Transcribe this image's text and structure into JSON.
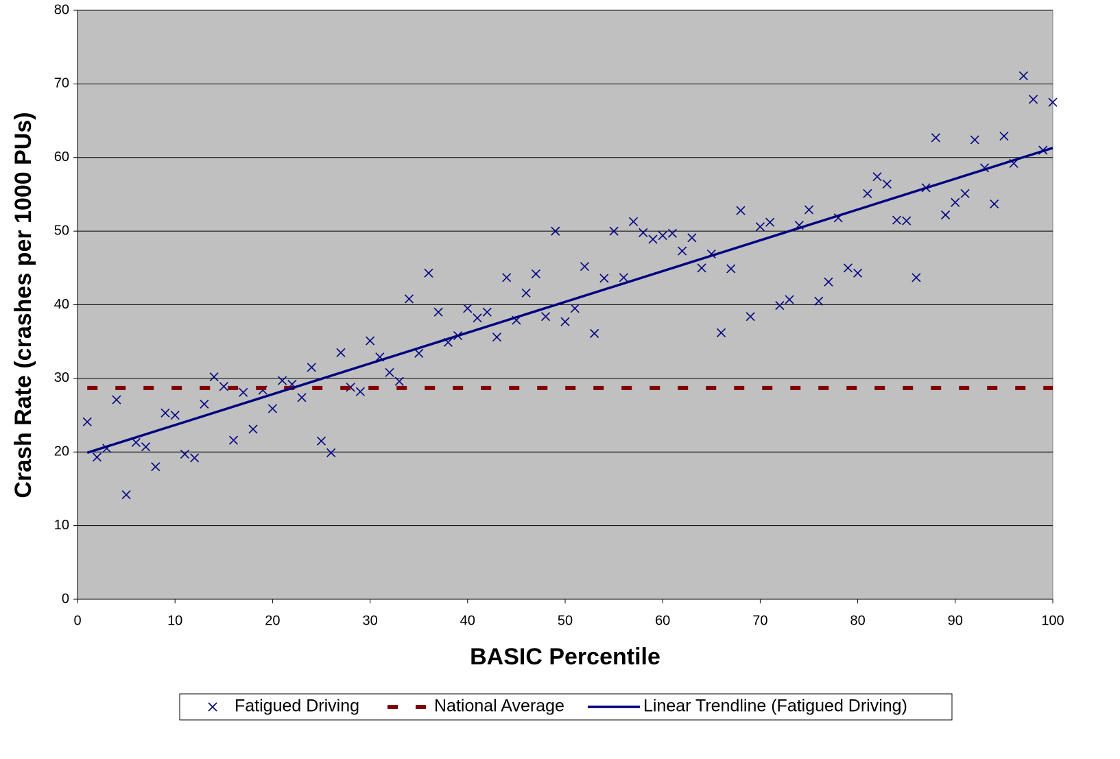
{
  "chart_data": {
    "type": "scatter",
    "xlabel": "BASIC Percentile",
    "ylabel": "Crash Rate (crashes per 1000 PUs)",
    "xlim": [
      0,
      100
    ],
    "xticks": [
      0,
      10,
      20,
      30,
      40,
      50,
      60,
      70,
      80,
      90,
      100
    ],
    "ylim": [
      0,
      80
    ],
    "yticks": [
      0,
      10,
      20,
      30,
      40,
      50,
      60,
      70,
      80
    ],
    "grid": true,
    "legend": "bottom",
    "series": [
      {
        "name": "Fatigued Driving",
        "type": "scatter",
        "color": "#000080",
        "x": [
          1,
          2,
          3,
          4,
          5,
          6,
          7,
          8,
          9,
          10,
          11,
          12,
          13,
          14,
          15,
          16,
          17,
          18,
          19,
          20,
          21,
          22,
          23,
          24,
          25,
          26,
          27,
          28,
          29,
          30,
          31,
          32,
          33,
          34,
          35,
          36,
          37,
          38,
          39,
          40,
          41,
          42,
          43,
          44,
          45,
          46,
          47,
          48,
          49,
          50,
          51,
          52,
          53,
          54,
          55,
          56,
          57,
          58,
          59,
          60,
          61,
          62,
          63,
          64,
          65,
          66,
          67,
          68,
          69,
          70,
          71,
          72,
          73,
          74,
          75,
          76,
          77,
          78,
          79,
          80,
          81,
          82,
          83,
          84,
          85,
          86,
          87,
          88,
          89,
          90,
          91,
          92,
          93,
          94,
          95,
          96,
          97,
          98,
          99,
          100
        ],
        "values": [
          24.1,
          19.3,
          20.5,
          27.1,
          14.2,
          21.3,
          20.7,
          18.0,
          25.3,
          25.0,
          19.7,
          19.2,
          26.5,
          30.2,
          28.9,
          21.6,
          28.1,
          23.1,
          28.4,
          25.9,
          29.7,
          29.2,
          27.4,
          31.5,
          21.5,
          19.9,
          33.5,
          28.8,
          28.2,
          35.1,
          32.9,
          30.8,
          29.6,
          40.8,
          33.4,
          44.3,
          39.0,
          34.9,
          35.8,
          39.5,
          38.2,
          39.0,
          35.6,
          43.7,
          37.9,
          41.6,
          44.2,
          38.4,
          50.0,
          37.7,
          39.5,
          45.2,
          36.1,
          43.6,
          50.0,
          43.7,
          51.3,
          49.8,
          48.9,
          49.4,
          49.7,
          47.3,
          49.1,
          45.0,
          46.9,
          36.2,
          44.9,
          52.8,
          38.4,
          50.6,
          51.2,
          39.9,
          40.7,
          50.8,
          52.9,
          40.5,
          43.1,
          51.8,
          45.0,
          44.3,
          55.1,
          57.4,
          56.4,
          51.5,
          51.4,
          43.7,
          55.9,
          62.7,
          52.2,
          53.9,
          55.1,
          62.4,
          58.6,
          53.7,
          62.9,
          59.2,
          71.1,
          67.9,
          61.0,
          67.5
        ]
      },
      {
        "name": "National Average",
        "type": "dashed-line",
        "color": "#800000",
        "x": [
          1,
          100
        ],
        "values": [
          28.7,
          28.7
        ]
      },
      {
        "name": "Linear Trendline (Fatigued Driving)",
        "type": "line",
        "color": "#000080",
        "x": [
          1,
          100
        ],
        "values": [
          19.9,
          61.3
        ]
      }
    ]
  }
}
